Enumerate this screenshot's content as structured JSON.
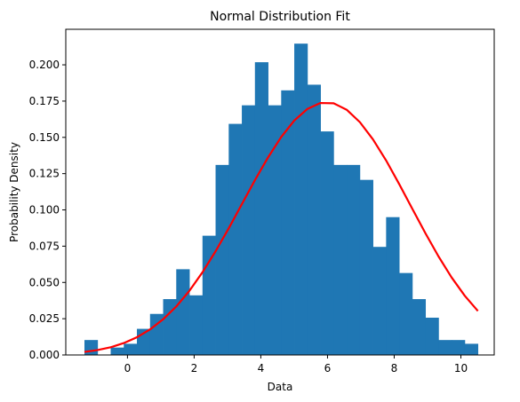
{
  "chart_data": {
    "type": "bar",
    "title": "Normal Distribution Fit",
    "xlabel": "Data",
    "ylabel": "Probability Density",
    "xlim": [
      -1.85,
      11.0
    ],
    "ylim": [
      0,
      0.2245
    ],
    "x_ticks": [
      0,
      2,
      4,
      6,
      8,
      10
    ],
    "x_tick_labels": [
      "0",
      "2",
      "4",
      "6",
      "8",
      "10"
    ],
    "y_ticks": [
      0.0,
      0.025,
      0.05,
      0.075,
      0.1,
      0.125,
      0.15,
      0.175,
      0.2
    ],
    "y_tick_labels": [
      "0.000",
      "0.025",
      "0.050",
      "0.075",
      "0.100",
      "0.125",
      "0.150",
      "0.175",
      "0.200"
    ],
    "grid": false,
    "series": [
      {
        "kind": "histogram",
        "color": "#1f77b4",
        "bin_edges": [
          -1.29,
          -0.897,
          -0.503,
          -0.11,
          0.283,
          0.677,
          1.07,
          1.463,
          1.857,
          2.25,
          2.643,
          3.037,
          3.43,
          3.823,
          4.217,
          4.61,
          5.003,
          5.397,
          5.79,
          6.183,
          6.577,
          6.97,
          7.363,
          7.757,
          8.15,
          8.543,
          8.937,
          9.33,
          9.723,
          10.117,
          10.51
        ],
        "values": [
          0.0103,
          0.0,
          0.0051,
          0.0077,
          0.018,
          0.0283,
          0.0385,
          0.0591,
          0.0411,
          0.0822,
          0.131,
          0.1593,
          0.1721,
          0.2018,
          0.1721,
          0.1824,
          0.2146,
          0.1863,
          0.1541,
          0.131,
          0.131,
          0.1207,
          0.0745,
          0.095,
          0.0565,
          0.0385,
          0.0257,
          0.0103,
          0.0103,
          0.0077
        ]
      },
      {
        "kind": "line",
        "color": "#ff0000",
        "x": [
          -1.29,
          -0.897,
          -0.503,
          -0.11,
          0.283,
          0.677,
          1.07,
          1.463,
          1.857,
          2.25,
          2.643,
          3.037,
          3.43,
          3.823,
          4.217,
          4.61,
          5.003,
          5.397,
          5.79,
          6.183,
          6.577,
          6.97,
          7.363,
          7.757,
          8.15,
          8.543,
          8.937,
          9.33,
          9.723,
          10.117,
          10.51
        ],
        "y": [
          0.0021,
          0.0034,
          0.0053,
          0.0082,
          0.0122,
          0.0176,
          0.0246,
          0.0334,
          0.0442,
          0.057,
          0.0715,
          0.0873,
          0.1039,
          0.1205,
          0.1362,
          0.1502,
          0.1616,
          0.1696,
          0.1737,
          0.1735,
          0.169,
          0.1605,
          0.1486,
          0.1341,
          0.1178,
          0.1008,
          0.0839,
          0.0679,
          0.0534,
          0.0408,
          0.0303
        ]
      }
    ]
  }
}
